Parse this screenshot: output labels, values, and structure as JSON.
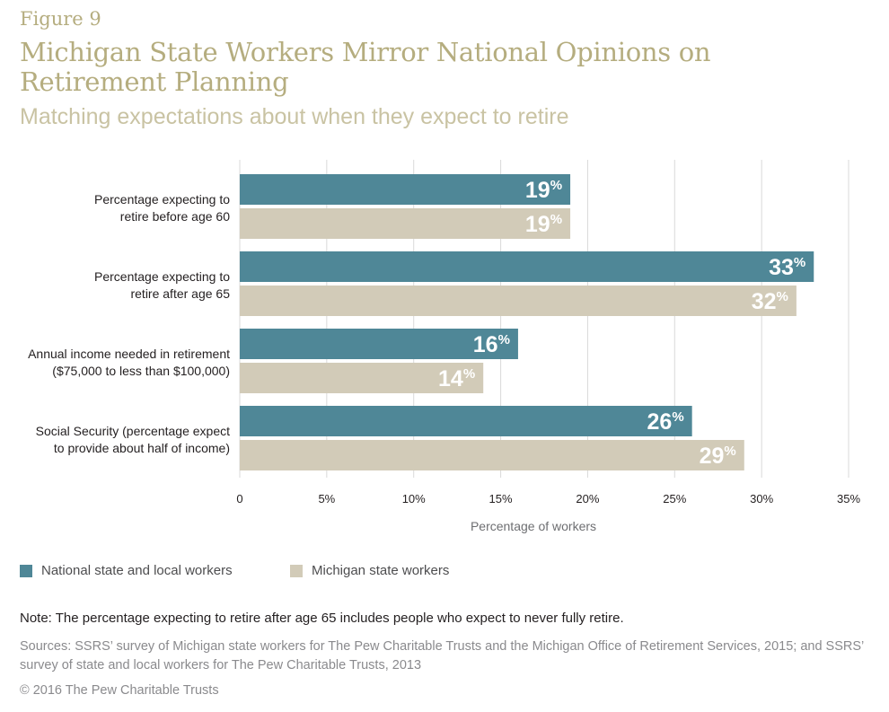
{
  "figure_label": "Figure 9",
  "title": "Michigan State Workers Mirror National Opinions on Retirement Planning",
  "subtitle": "Matching expectations about when they expect to retire",
  "chart_data": {
    "type": "bar",
    "orientation": "horizontal",
    "categories": [
      [
        "Percentage expecting to",
        "retire before age 60"
      ],
      [
        "Percentage expecting to",
        "retire after age 65"
      ],
      [
        "Annual income needed in retirement",
        "($75,000 to less than $100,000)"
      ],
      [
        "Social Security (percentage expect",
        "to provide about half of income)"
      ]
    ],
    "series": [
      {
        "name": "National state and local workers",
        "values": [
          19,
          33,
          16,
          26
        ],
        "color": "#4f8797"
      },
      {
        "name": "Michigan state workers",
        "values": [
          19,
          32,
          14,
          29
        ],
        "color": "#d2cbb8"
      }
    ],
    "xlim": [
      0,
      35
    ],
    "xticks": [
      "0",
      "5%",
      "10%",
      "15%",
      "20%",
      "25%",
      "30%",
      "35%"
    ],
    "xtick_values": [
      0,
      5,
      10,
      15,
      20,
      25,
      30,
      35
    ],
    "xlabel": "Percentage of workers",
    "grid": true,
    "legend_position": "bottom-left"
  },
  "legend": [
    {
      "label": "National state and local workers",
      "color": "#4f8797"
    },
    {
      "label": "Michigan state workers",
      "color": "#d2cbb8"
    }
  ],
  "note": "Note: The percentage expecting to retire after age 65 includes people who expect to never fully retire.",
  "sources": "Sources: SSRS’ survey of Michigan state workers for The Pew Charitable Trusts and the Michigan Office of Retirement Services, 2015; and SSRS’ survey of state and local workers for The Pew Charitable Trusts, 2013",
  "copyright": "© 2016 The Pew Charitable Trusts"
}
